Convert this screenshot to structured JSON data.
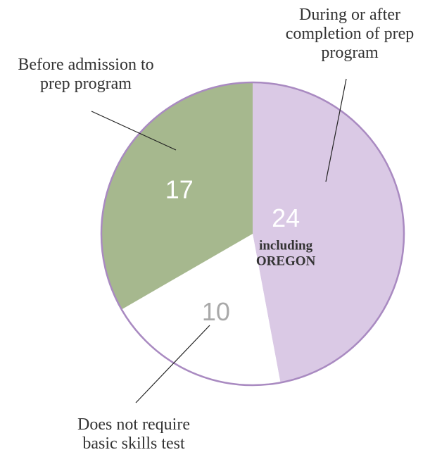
{
  "chart_data": {
    "type": "pie",
    "title": "",
    "slices": [
      {
        "value": 24,
        "value_label": "24",
        "note": [
          "including",
          "OREGON"
        ],
        "category": [
          "During or after",
          "completion of prep",
          "program"
        ],
        "color": "#dac9e5"
      },
      {
        "value": 10,
        "value_label": "10",
        "note": [],
        "category": [
          "Does not require",
          "basic skills test"
        ],
        "color": "#ffffff"
      },
      {
        "value": 17,
        "value_label": "17",
        "note": [],
        "category": [
          "Before admission to",
          "prep program"
        ],
        "color": "#a6b88e"
      }
    ],
    "outline_color": "#a98ac1",
    "leader_line_color": "#222222",
    "value_label_colors": [
      "#ffffff",
      "#a9a9a9",
      "#ffffff"
    ],
    "legend": "none"
  }
}
